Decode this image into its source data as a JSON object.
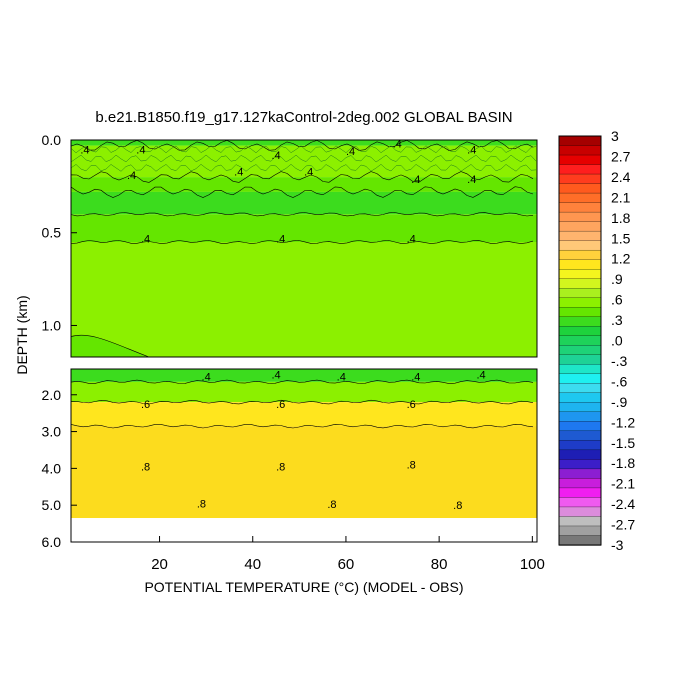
{
  "chart_data": {
    "type": "heatmap",
    "title": "b.e21.B1850.f19_g17.127kaControl-2deg.002 GLOBAL BASIN",
    "xlabel": "POTENTIAL TEMPERATURE (°C) (MODEL - OBS)",
    "ylabel": "DEPTH (km)",
    "xlim": [
      1,
      101
    ],
    "x_ticks": [
      "20",
      "40",
      "60",
      "80",
      "100"
    ],
    "panels": [
      {
        "name": "upper",
        "ylim": [
          0.0,
          1.17
        ],
        "y_ticks": [
          "0.0",
          "0.5",
          "1.0"
        ],
        "bands": [
          {
            "depth_top": 0.0,
            "depth_bottom": 0.03,
            "value": 0.3
          },
          {
            "depth_top": 0.03,
            "depth_bottom": 0.2,
            "value": 0.5
          },
          {
            "depth_top": 0.2,
            "depth_bottom": 0.28,
            "value": 0.4
          },
          {
            "depth_top": 0.28,
            "depth_bottom": 0.4,
            "value": 0.3
          },
          {
            "depth_top": 0.4,
            "depth_bottom": 0.55,
            "value": 0.4
          },
          {
            "depth_top": 0.55,
            "depth_bottom": 1.17,
            "value": 0.5
          }
        ],
        "contour_labels": [
          {
            "x": 4,
            "depth": 0.05,
            "text": ".4"
          },
          {
            "x": 16,
            "depth": 0.05,
            "text": ".4"
          },
          {
            "x": 45,
            "depth": 0.08,
            "text": ".4"
          },
          {
            "x": 61,
            "depth": 0.06,
            "text": ".4"
          },
          {
            "x": 71,
            "depth": 0.02,
            "text": ".4"
          },
          {
            "x": 87,
            "depth": 0.05,
            "text": ".4"
          },
          {
            "x": 14,
            "depth": 0.19,
            "text": ".4"
          },
          {
            "x": 37,
            "depth": 0.17,
            "text": ".4"
          },
          {
            "x": 52,
            "depth": 0.17,
            "text": ".4"
          },
          {
            "x": 75,
            "depth": 0.21,
            "text": ".4"
          },
          {
            "x": 87,
            "depth": 0.21,
            "text": ".4"
          },
          {
            "x": 17,
            "depth": 0.53,
            "text": ".4"
          },
          {
            "x": 46,
            "depth": 0.53,
            "text": ".4"
          },
          {
            "x": 74,
            "depth": 0.53,
            "text": ".4"
          }
        ]
      },
      {
        "name": "lower",
        "ylim": [
          1.3,
          6.0
        ],
        "y_ticks": [
          "2.0",
          "3.0",
          "4.0",
          "5.0",
          "6.0"
        ],
        "bottom_depth": 5.35,
        "bands": [
          {
            "depth_top": 1.3,
            "depth_bottom": 1.65,
            "value": 0.3
          },
          {
            "depth_top": 1.65,
            "depth_bottom": 2.2,
            "value": 0.5
          },
          {
            "depth_top": 2.2,
            "depth_bottom": 2.85,
            "value": 0.6
          },
          {
            "depth_top": 2.85,
            "depth_bottom": 5.35,
            "value": 0.7
          }
        ],
        "contour_labels": [
          {
            "x": 30,
            "depth": 1.5,
            "text": ".4"
          },
          {
            "x": 45,
            "depth": 1.45,
            "text": ".4"
          },
          {
            "x": 59,
            "depth": 1.5,
            "text": ".4"
          },
          {
            "x": 75,
            "depth": 1.5,
            "text": ".4"
          },
          {
            "x": 89,
            "depth": 1.45,
            "text": ".4"
          },
          {
            "x": 17,
            "depth": 2.25,
            "text": ".6"
          },
          {
            "x": 46,
            "depth": 2.25,
            "text": ".6"
          },
          {
            "x": 74,
            "depth": 2.25,
            "text": ".6"
          },
          {
            "x": 17,
            "depth": 3.95,
            "text": ".8"
          },
          {
            "x": 46,
            "depth": 3.95,
            "text": ".8"
          },
          {
            "x": 74,
            "depth": 3.9,
            "text": ".8"
          },
          {
            "x": 29,
            "depth": 4.95,
            "text": ".8"
          },
          {
            "x": 57,
            "depth": 4.97,
            "text": ".8"
          },
          {
            "x": 84,
            "depth": 5.0,
            "text": ".8"
          }
        ]
      }
    ],
    "colorbar": {
      "labels": [
        "3",
        "2.7",
        "2.4",
        "2.1",
        "1.8",
        "1.5",
        "1.2",
        ".9",
        ".6",
        ".3",
        ".0",
        "-.3",
        "-.6",
        "-.9",
        "-1.2",
        "-1.5",
        "-1.8",
        "-2.1",
        "-2.4",
        "-2.7",
        "-3"
      ],
      "colors": [
        "#a50000",
        "#c80000",
        "#e60000",
        "#ff1e1e",
        "#ff3c1e",
        "#ff5a1e",
        "#ff6e28",
        "#ff823c",
        "#ff9650",
        "#ffa55f",
        "#ffb46e",
        "#ffc878",
        "#ffd23c",
        "#ffe61e",
        "#f5f51e",
        "#d2f51e",
        "#aaf01e",
        "#8cf000",
        "#64e600",
        "#3cdc1e",
        "#1ed23c",
        "#1ed25a",
        "#1ed278",
        "#1ed296",
        "#1ee6c8",
        "#1ef0f0",
        "#3cdcf0",
        "#1ec8f0",
        "#1eb4f0",
        "#1e96f0",
        "#1e78f0",
        "#1e5ad2",
        "#1e3cc8",
        "#1e1eb4",
        "#3c1ec8",
        "#8c1ed2",
        "#c81edc",
        "#f01ef0",
        "#f05af0",
        "#dc8cdc",
        "#bebebe",
        "#a0a0a0",
        "#787878"
      ]
    }
  }
}
